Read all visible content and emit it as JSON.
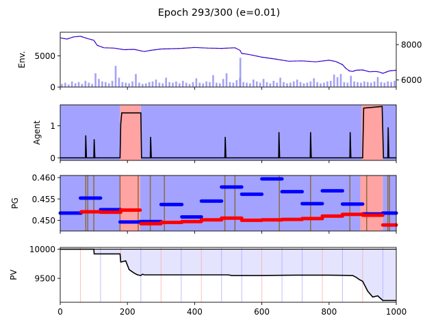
{
  "title": "Epoch 293/300 (e=0.01)",
  "colors": {
    "price_line": "#0000ff",
    "price_overlay": "#ff0000",
    "volume": "#8c8cf2",
    "regime_blue": "#a3a3ff",
    "regime_red": "#ffa3a3",
    "marker_brown": "#8b6a3e",
    "pg_blue": "#0000ff",
    "pg_red": "#ff0000",
    "pv_line": "#000000",
    "pv_fill": "#e4e4ff"
  },
  "chart_data": [
    {
      "id": "env",
      "type": "line",
      "ylabel": "Env.",
      "xlim": [
        0,
        1000
      ],
      "ylim": [
        0,
        8800
      ],
      "yticks": [
        0,
        5000
      ],
      "right_axis": {
        "ylim": [
          5600,
          8700
        ],
        "yticks": [
          6000,
          8000
        ]
      },
      "series": [
        {
          "role": "price",
          "points": [
            [
              0,
              7900
            ],
            [
              20,
              7700
            ],
            [
              40,
              8050
            ],
            [
              60,
              8150
            ],
            [
              80,
              7800
            ],
            [
              100,
              7500
            ],
            [
              110,
              6700
            ],
            [
              130,
              6300
            ],
            [
              160,
              6250
            ],
            [
              190,
              6000
            ],
            [
              220,
              6050
            ],
            [
              250,
              5700
            ],
            [
              270,
              5900
            ],
            [
              300,
              6100
            ],
            [
              330,
              6150
            ],
            [
              360,
              6200
            ],
            [
              400,
              6350
            ],
            [
              440,
              6250
            ],
            [
              480,
              6200
            ],
            [
              520,
              6300
            ],
            [
              535,
              5900
            ],
            [
              540,
              5400
            ],
            [
              560,
              5250
            ],
            [
              600,
              4800
            ],
            [
              640,
              4500
            ],
            [
              680,
              4150
            ],
            [
              720,
              4200
            ],
            [
              760,
              4050
            ],
            [
              800,
              4300
            ],
            [
              820,
              4100
            ],
            [
              840,
              3600
            ],
            [
              850,
              3000
            ],
            [
              860,
              2600
            ],
            [
              870,
              2500
            ],
            [
              880,
              2700
            ],
            [
              900,
              2750
            ],
            [
              920,
              2450
            ],
            [
              940,
              2500
            ],
            [
              950,
              2400
            ],
            [
              960,
              2200
            ],
            [
              980,
              2600
            ],
            [
              1000,
              2700
            ]
          ]
        },
        {
          "role": "volume",
          "points": [
            [
              5,
              500
            ],
            [
              15,
              700
            ],
            [
              25,
              400
            ],
            [
              35,
              900
            ],
            [
              45,
              600
            ],
            [
              55,
              800
            ],
            [
              65,
              500
            ],
            [
              75,
              1000
            ],
            [
              85,
              700
            ],
            [
              95,
              500
            ],
            [
              105,
              2200
            ],
            [
              115,
              1300
            ],
            [
              125,
              900
            ],
            [
              135,
              800
            ],
            [
              145,
              600
            ],
            [
              155,
              1000
            ],
            [
              165,
              3400
            ],
            [
              175,
              1500
            ],
            [
              185,
              800
            ],
            [
              195,
              700
            ],
            [
              205,
              600
            ],
            [
              215,
              900
            ],
            [
              225,
              2100
            ],
            [
              235,
              700
            ],
            [
              245,
              500
            ],
            [
              255,
              600
            ],
            [
              265,
              800
            ],
            [
              275,
              900
            ],
            [
              285,
              1200
            ],
            [
              295,
              700
            ],
            [
              305,
              600
            ],
            [
              315,
              1500
            ],
            [
              325,
              800
            ],
            [
              335,
              700
            ],
            [
              345,
              900
            ],
            [
              355,
              600
            ],
            [
              365,
              1000
            ],
            [
              375,
              700
            ],
            [
              385,
              500
            ],
            [
              395,
              800
            ],
            [
              405,
              1400
            ],
            [
              415,
              700
            ],
            [
              425,
              600
            ],
            [
              435,
              900
            ],
            [
              445,
              800
            ],
            [
              455,
              1900
            ],
            [
              465,
              700
            ],
            [
              475,
              600
            ],
            [
              485,
              1300
            ],
            [
              495,
              2200
            ],
            [
              505,
              800
            ],
            [
              515,
              700
            ],
            [
              525,
              1100
            ],
            [
              535,
              1500
            ],
            [
              536,
              4700
            ],
            [
              545,
              800
            ],
            [
              555,
              700
            ],
            [
              565,
              600
            ],
            [
              575,
              1200
            ],
            [
              585,
              900
            ],
            [
              595,
              700
            ],
            [
              605,
              1300
            ],
            [
              615,
              800
            ],
            [
              625,
              600
            ],
            [
              635,
              1000
            ],
            [
              645,
              700
            ],
            [
              655,
              1500
            ],
            [
              665,
              800
            ],
            [
              675,
              600
            ],
            [
              685,
              700
            ],
            [
              695,
              900
            ],
            [
              705,
              1200
            ],
            [
              715,
              800
            ],
            [
              725,
              600
            ],
            [
              735,
              700
            ],
            [
              745,
              900
            ],
            [
              755,
              1400
            ],
            [
              765,
              800
            ],
            [
              775,
              600
            ],
            [
              785,
              700
            ],
            [
              795,
              900
            ],
            [
              805,
              1000
            ],
            [
              815,
              2000
            ],
            [
              825,
              1600
            ],
            [
              835,
              2100
            ],
            [
              845,
              800
            ],
            [
              855,
              700
            ],
            [
              865,
              1800
            ],
            [
              875,
              900
            ],
            [
              885,
              800
            ],
            [
              895,
              700
            ],
            [
              905,
              900
            ],
            [
              915,
              800
            ],
            [
              925,
              700
            ],
            [
              935,
              900
            ],
            [
              945,
              1600
            ],
            [
              955,
              800
            ],
            [
              965,
              700
            ],
            [
              975,
              900
            ],
            [
              985,
              800
            ],
            [
              995,
              1000
            ]
          ]
        }
      ]
    },
    {
      "id": "agent",
      "type": "line",
      "ylabel": "Agent",
      "xlim": [
        0,
        1000
      ],
      "ylim": [
        -0.08,
        1.65
      ],
      "yticks": [
        0,
        1
      ],
      "regions": [
        {
          "from": 0,
          "to": 178,
          "class": "blue"
        },
        {
          "from": 178,
          "to": 240,
          "class": "red"
        },
        {
          "from": 240,
          "to": 897,
          "class": "blue"
        },
        {
          "from": 897,
          "to": 960,
          "class": "red"
        },
        {
          "from": 960,
          "to": 1000,
          "class": "blue"
        }
      ],
      "points": [
        [
          0,
          0
        ],
        [
          75,
          0
        ],
        [
          76,
          0.7
        ],
        [
          78,
          0
        ],
        [
          100,
          0
        ],
        [
          101,
          0.58
        ],
        [
          103,
          0
        ],
        [
          178,
          0
        ],
        [
          180,
          1.05
        ],
        [
          183,
          1.4
        ],
        [
          240,
          1.4
        ],
        [
          242,
          0
        ],
        [
          268,
          0
        ],
        [
          269,
          0.65
        ],
        [
          271,
          0
        ],
        [
          490,
          0
        ],
        [
          491,
          0.65
        ],
        [
          493,
          0
        ],
        [
          650,
          0
        ],
        [
          651,
          0.8
        ],
        [
          653,
          0
        ],
        [
          744,
          0
        ],
        [
          745,
          0.8
        ],
        [
          747,
          0
        ],
        [
          862,
          0
        ],
        [
          863,
          0.8
        ],
        [
          865,
          0
        ],
        [
          900,
          0
        ],
        [
          903,
          1.55
        ],
        [
          958,
          1.6
        ],
        [
          962,
          0
        ],
        [
          975,
          0
        ],
        [
          976,
          0.95
        ],
        [
          978,
          0
        ],
        [
          1000,
          0
        ]
      ]
    },
    {
      "id": "pg",
      "type": "scatter",
      "ylabel": "PG",
      "xlim": [
        0,
        1000
      ],
      "ylim": [
        0.4475,
        0.4605
      ],
      "yticks": [
        0.45,
        0.455,
        0.46
      ],
      "tick_labels": [
        "0.450",
        "0.455",
        "0.460"
      ],
      "regions": [
        {
          "from": 0,
          "to": 178,
          "class": "blue"
        },
        {
          "from": 178,
          "to": 238,
          "class": "red"
        },
        {
          "from": 238,
          "to": 893,
          "class": "blue"
        },
        {
          "from": 893,
          "to": 960,
          "class": "red"
        },
        {
          "from": 960,
          "to": 1000,
          "class": "blue"
        }
      ],
      "markers": [
        76,
        82,
        100,
        178,
        232,
        268,
        310,
        490,
        520,
        652,
        745,
        862,
        912,
        975,
        980
      ],
      "segments_blue": [
        {
          "x0": 0,
          "x1": 62,
          "y": 0.4517
        },
        {
          "x0": 60,
          "x1": 120,
          "y": 0.4552
        },
        {
          "x0": 120,
          "x1": 180,
          "y": 0.4525
        },
        {
          "x0": 178,
          "x1": 238,
          "y": 0.4496
        },
        {
          "x0": 238,
          "x1": 300,
          "y": 0.4497
        },
        {
          "x0": 300,
          "x1": 362,
          "y": 0.4537
        },
        {
          "x0": 362,
          "x1": 420,
          "y": 0.4508
        },
        {
          "x0": 420,
          "x1": 480,
          "y": 0.4545
        },
        {
          "x0": 480,
          "x1": 540,
          "y": 0.4578
        },
        {
          "x0": 540,
          "x1": 600,
          "y": 0.4561
        },
        {
          "x0": 600,
          "x1": 660,
          "y": 0.4597
        },
        {
          "x0": 660,
          "x1": 720,
          "y": 0.4567
        },
        {
          "x0": 720,
          "x1": 780,
          "y": 0.4539
        },
        {
          "x0": 780,
          "x1": 840,
          "y": 0.4569
        },
        {
          "x0": 840,
          "x1": 900,
          "y": 0.4538
        },
        {
          "x0": 900,
          "x1": 960,
          "y": 0.4515
        },
        {
          "x0": 960,
          "x1": 1000,
          "y": 0.4517
        }
      ],
      "segments_red": [
        {
          "x0": 62,
          "x1": 120,
          "y": 0.452
        },
        {
          "x0": 120,
          "x1": 180,
          "y": 0.4519
        },
        {
          "x0": 180,
          "x1": 238,
          "y": 0.4524
        },
        {
          "x0": 240,
          "x1": 300,
          "y": 0.4492
        },
        {
          "x0": 300,
          "x1": 362,
          "y": 0.4495
        },
        {
          "x0": 362,
          "x1": 420,
          "y": 0.4497
        },
        {
          "x0": 420,
          "x1": 480,
          "y": 0.4501
        },
        {
          "x0": 480,
          "x1": 540,
          "y": 0.4505
        },
        {
          "x0": 540,
          "x1": 600,
          "y": 0.45
        },
        {
          "x0": 600,
          "x1": 660,
          "y": 0.4501
        },
        {
          "x0": 660,
          "x1": 720,
          "y": 0.4502
        },
        {
          "x0": 720,
          "x1": 780,
          "y": 0.4504
        },
        {
          "x0": 780,
          "x1": 840,
          "y": 0.451
        },
        {
          "x0": 840,
          "x1": 900,
          "y": 0.4514
        },
        {
          "x0": 900,
          "x1": 960,
          "y": 0.4512
        },
        {
          "x0": 960,
          "x1": 1000,
          "y": 0.4489
        }
      ]
    },
    {
      "id": "pv",
      "type": "line",
      "ylabel": "PV",
      "xlabel": "",
      "xlim": [
        0,
        1000
      ],
      "ylim": [
        9090,
        10030
      ],
      "yticks": [
        9500,
        10000
      ],
      "xticks": [
        0,
        200,
        400,
        600,
        800,
        1000
      ],
      "baseline": 10000,
      "vlines_red": [
        60,
        180,
        300,
        420,
        600,
        780,
        900
      ],
      "vlines_blue": [
        120,
        240,
        360,
        480,
        540,
        660,
        720,
        840,
        960
      ],
      "points": [
        [
          0,
          10000
        ],
        [
          100,
          10000
        ],
        [
          101,
          9920
        ],
        [
          178,
          9920
        ],
        [
          180,
          9780
        ],
        [
          195,
          9800
        ],
        [
          205,
          9650
        ],
        [
          220,
          9590
        ],
        [
          230,
          9560
        ],
        [
          240,
          9550
        ],
        [
          245,
          9570
        ],
        [
          250,
          9560
        ],
        [
          300,
          9560
        ],
        [
          400,
          9560
        ],
        [
          500,
          9560
        ],
        [
          510,
          9550
        ],
        [
          600,
          9550
        ],
        [
          700,
          9555
        ],
        [
          800,
          9555
        ],
        [
          870,
          9550
        ],
        [
          880,
          9520
        ],
        [
          890,
          9480
        ],
        [
          900,
          9450
        ],
        [
          915,
          9280
        ],
        [
          930,
          9180
        ],
        [
          945,
          9200
        ],
        [
          960,
          9120
        ],
        [
          1000,
          9120
        ]
      ]
    }
  ]
}
